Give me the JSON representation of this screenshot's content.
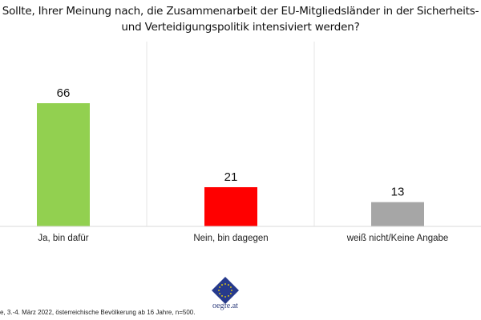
{
  "chart_data": {
    "type": "bar",
    "title": "Sollte, Ihrer Meinung nach, die Zusammenarbeit der EU-Mitgliedsländer in der Sicherheits- und Verteidigungspolitik intensiviert werden?",
    "categories": [
      "Ja, bin dafür",
      "Nein, bin dagegen",
      "weiß nicht/Keine Angabe"
    ],
    "values": [
      66,
      21,
      13
    ],
    "colors": [
      "#92d050",
      "#ff0000",
      "#a6a6a6"
    ],
    "ylim": [
      0,
      70
    ],
    "grid": false,
    "legend": "none",
    "data_labels": true
  },
  "footer": {
    "source": "e, 3.-4. März 2022, österreichische Bevölkerung ab 16 Jahre, n=500.",
    "logo_text": "oegfe.at",
    "logo_color": "#263a8c"
  }
}
